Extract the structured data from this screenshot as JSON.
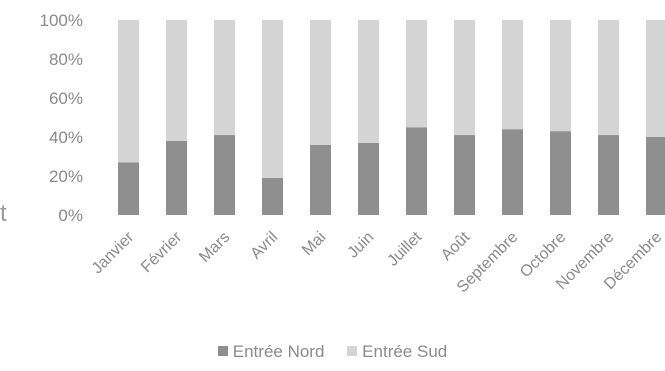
{
  "chart_data": {
    "type": "bar",
    "stacked": "percent",
    "categories": [
      "Janvier",
      "Février",
      "Mars",
      "Avril",
      "Mai",
      "Juin",
      "Juillet",
      "Août",
      "Septembre",
      "Octobre",
      "Novembre",
      "Décembre"
    ],
    "series": [
      {
        "name": "Entrée Nord",
        "values": [
          27,
          38,
          41,
          19,
          36,
          37,
          45,
          41,
          44,
          43,
          41,
          40
        ],
        "color": "#8f8f8f"
      },
      {
        "name": "Entrée Sud",
        "values": [
          73,
          62,
          59,
          81,
          64,
          63,
          55,
          59,
          56,
          57,
          59,
          60
        ],
        "color": "#d4d4d4"
      }
    ],
    "ylim": [
      0,
      100
    ],
    "ytick_labels": [
      "0%",
      "20%",
      "40%",
      "60%",
      "80%",
      "100%"
    ],
    "grid": false,
    "legend": "bottom"
  },
  "edge_text": "t"
}
